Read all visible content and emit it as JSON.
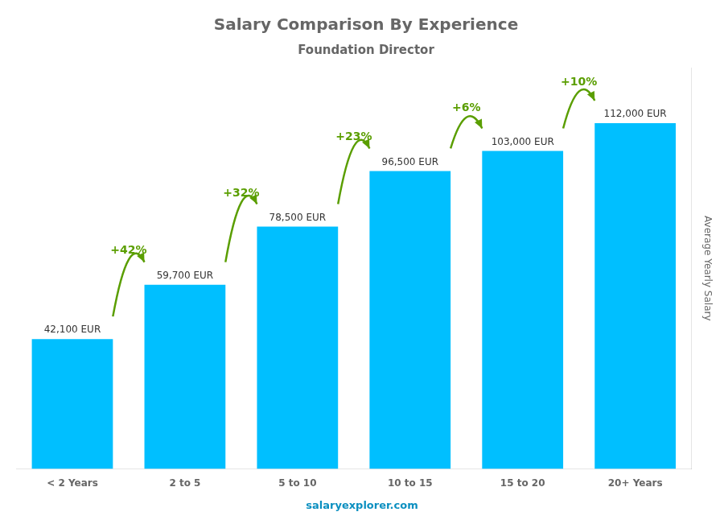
{
  "chart_data": {
    "type": "bar",
    "title": "Salary Comparison By Experience",
    "subtitle": "Foundation Director",
    "categories": [
      "< 2 Years",
      "2 to 5",
      "5 to 10",
      "10 to 15",
      "15 to 20",
      "20+ Years"
    ],
    "values": [
      42100,
      59700,
      78500,
      96500,
      103000,
      112000
    ],
    "value_labels": [
      "42,100 EUR",
      "59,700 EUR",
      "78,500 EUR",
      "96,500 EUR",
      "103,000 EUR",
      "112,000 EUR"
    ],
    "data_labels": true,
    "annotations": [
      "+42%",
      "+32%",
      "+23%",
      "+6%",
      "+10%"
    ],
    "color": "#00BFFF",
    "ylabel": "Average Yearly Salary",
    "footer": "salaryexplorer.com",
    "ylim": [
      0,
      130000
    ],
    "grid": false,
    "tick_labels": "x"
  }
}
